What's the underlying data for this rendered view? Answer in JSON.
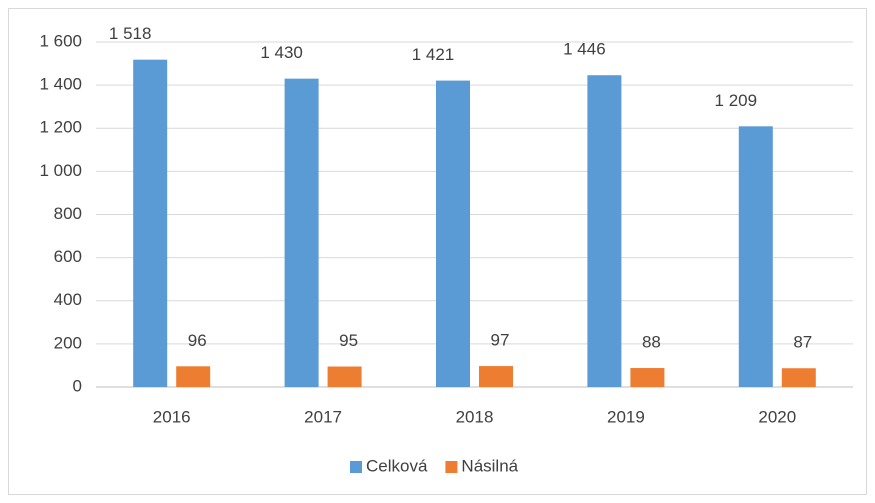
{
  "chart_data": {
    "type": "bar",
    "categories": [
      "2016",
      "2017",
      "2018",
      "2019",
      "2020"
    ],
    "series": [
      {
        "name": "Celková",
        "color": "#5b9bd5",
        "values": [
          1518,
          1430,
          1421,
          1446,
          1209
        ],
        "value_labels": [
          "1 518",
          "1 430",
          "1 421",
          "1 446",
          "1 209"
        ]
      },
      {
        "name": "Násilná",
        "color": "#ed7d31",
        "values": [
          96,
          95,
          97,
          88,
          87
        ]
      }
    ],
    "ylim": [
      0,
      1600
    ],
    "yticks": [
      0,
      200,
      400,
      600,
      800,
      {
        "value": 1000,
        "label": "1 000"
      },
      {
        "value": 1200,
        "label": "1 200"
      },
      {
        "value": 1400,
        "label": "1 400"
      },
      {
        "value": 1600,
        "label": "1 600"
      }
    ],
    "grid": true,
    "legend": "bottom"
  }
}
